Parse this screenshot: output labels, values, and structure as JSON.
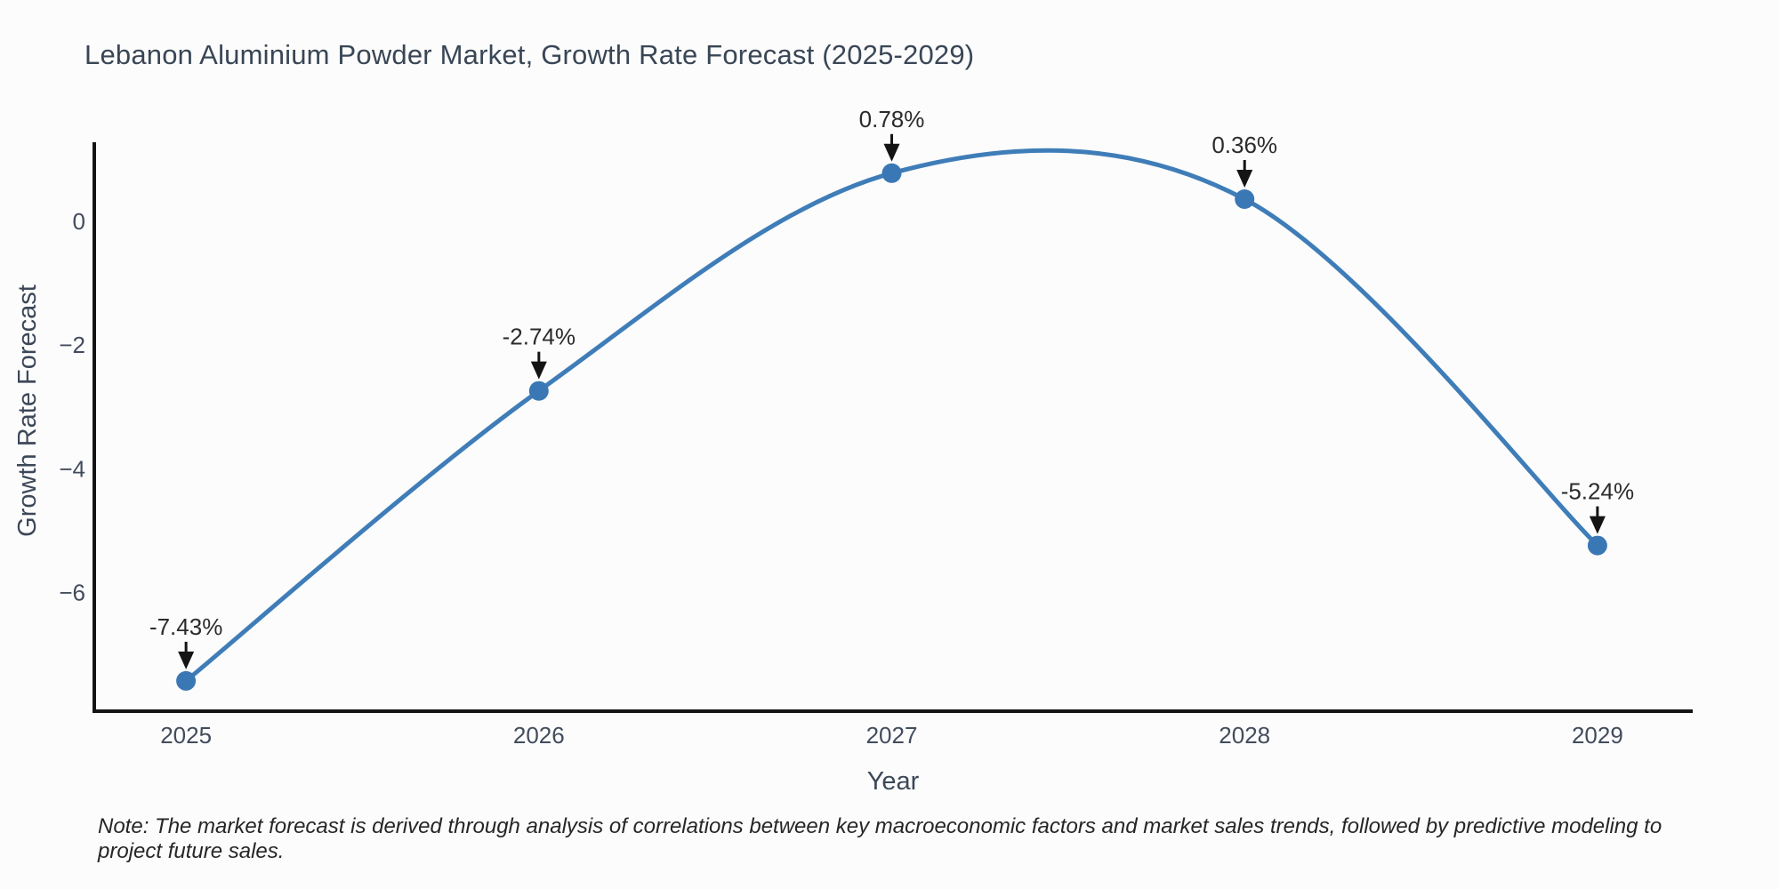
{
  "title": "Lebanon Aluminium Powder Market, Growth Rate Forecast (2025-2029)",
  "note": "Note: The market forecast is derived through analysis of correlations between key macroeconomic factors and market sales trends, followed by predictive modeling to project future sales.",
  "chart_data": {
    "type": "line",
    "line_shape": "spline",
    "title": "Lebanon Aluminium Powder Market, Growth Rate Forecast (2025-2029)",
    "xlabel": "Year",
    "ylabel": "Growth Rate Forecast",
    "x": [
      2025,
      2026,
      2027,
      2028,
      2029
    ],
    "x_tick_labels": [
      "2025",
      "2026",
      "2027",
      "2028",
      "2029"
    ],
    "series": [
      {
        "name": "Growth Rate Forecast",
        "values": [
          -7.43,
          -2.74,
          0.78,
          0.36,
          -5.24
        ]
      }
    ],
    "point_labels": [
      "-7.43%",
      "-2.74%",
      "0.78%",
      "0.36%",
      "-5.24%"
    ],
    "y_ticks": [
      0,
      -2,
      -4,
      -6
    ],
    "y_tick_labels": [
      "0",
      "−2",
      "−4",
      "−6"
    ],
    "xlim": [
      2024.74,
      2029.27
    ],
    "ylim": [
      -7.92,
      1.28
    ],
    "grid": false,
    "legend": "none",
    "marker_radius": 11,
    "colors": {
      "line": "#3f7db8",
      "marker": "#3a78b5",
      "axis": "#141414",
      "tick_text": "#424c5c",
      "axis_title_text": "#3c4758",
      "annotation_text": "#2b2b2b"
    }
  }
}
